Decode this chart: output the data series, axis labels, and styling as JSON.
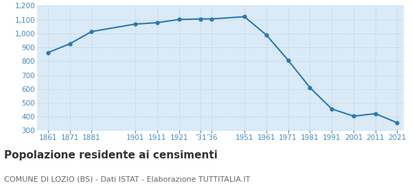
{
  "years": [
    1861,
    1871,
    1881,
    1901,
    1911,
    1921,
    1931,
    1936,
    1951,
    1961,
    1971,
    1981,
    1991,
    2001,
    2011,
    2021
  ],
  "population": [
    862,
    926,
    1014,
    1068,
    1078,
    1101,
    1105,
    1105,
    1121,
    990,
    808,
    610,
    456,
    404,
    422,
    356
  ],
  "line_color": "#2878b5",
  "fill_color": "#daeaf7",
  "marker_color": "#2878b5",
  "background_color": "#ffffff",
  "grid_color": "#c8d8e8",
  "title": "Popolazione residente ai censimenti",
  "subtitle": "COMUNE DI LOZIO (BS) - Dati ISTAT - Elaborazione TUTTITALIA.IT",
  "ylim": [
    300,
    1200
  ],
  "yticks": [
    300,
    400,
    500,
    600,
    700,
    800,
    900,
    1000,
    1100,
    1200
  ],
  "x_tick_positions": [
    1861,
    1871,
    1881,
    1901,
    1911,
    1921,
    1931,
    1936,
    1951,
    1961,
    1971,
    1981,
    1991,
    2001,
    2011,
    2021
  ],
  "x_tick_labels": [
    "1861",
    "1871",
    "1881",
    "1901",
    "1911",
    "1921",
    "’31",
    "’36",
    "1951",
    "1961",
    "1971",
    "1981",
    "1991",
    "2001",
    "2011",
    "2021"
  ],
  "title_fontsize": 11,
  "subtitle_fontsize": 8,
  "tick_color": "#4488bb",
  "tick_fontsize": 7.5
}
